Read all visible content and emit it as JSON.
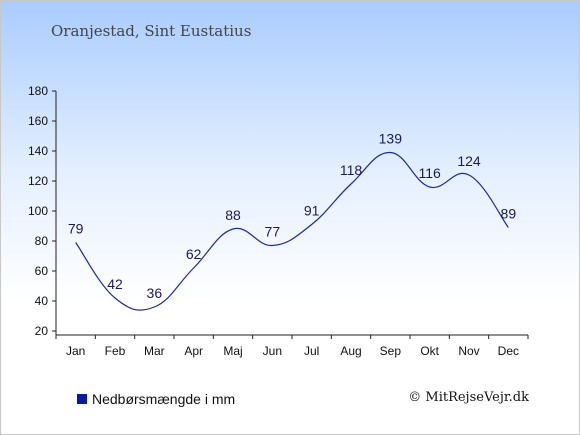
{
  "header": {
    "subtitle": "Oranjestad, Sint Eustatius"
  },
  "legend": {
    "label": "Nedbørsmængde i mm"
  },
  "credit": {
    "text": "© MitRejseVejr.dk"
  },
  "colors": {
    "line": "#1c2a9c",
    "swatch": "#0a1aa8"
  },
  "chart_data": {
    "type": "line",
    "categories": [
      "Jan",
      "Feb",
      "Mar",
      "Apr",
      "Maj",
      "Jun",
      "Jul",
      "Aug",
      "Sep",
      "Okt",
      "Nov",
      "Dec"
    ],
    "series": [
      {
        "values": [
          79,
          42,
          36,
          62,
          88,
          77,
          91,
          118,
          139,
          116,
          124,
          89
        ]
      }
    ],
    "ylim": [
      20,
      180
    ],
    "yticks": [
      20,
      40,
      60,
      80,
      100,
      120,
      140,
      160,
      180
    ],
    "grid": false,
    "legend_position": "bottom-left"
  }
}
